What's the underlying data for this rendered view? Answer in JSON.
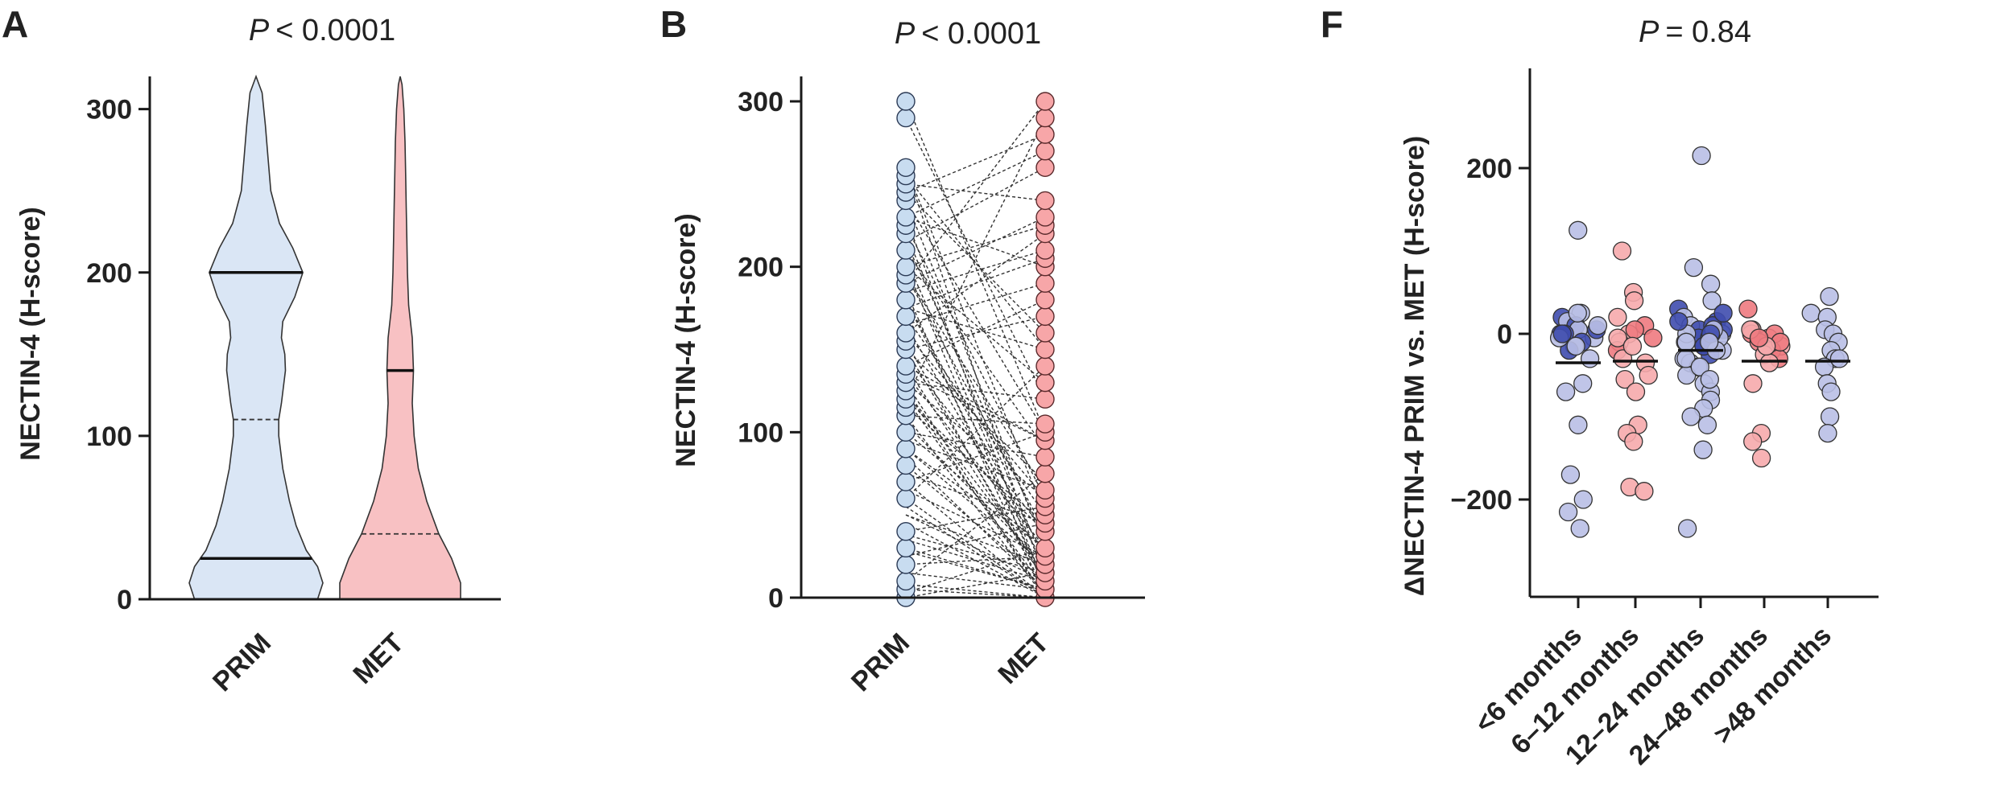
{
  "colors": {
    "prim_fill": "#dae6f5",
    "met_fill": "#f8c1c3",
    "met_fill_light": "#fbd3d4",
    "dark_blue": "#3f4cae",
    "light_blue": "#b9bfe6",
    "dark_red": "#ee7a80",
    "light_red": "#f6aaac",
    "prim_point": "#c8dcf0",
    "met_point": "#f7a6a8"
  },
  "chart_data": [
    {
      "id": "A",
      "type": "violin",
      "panel_label": "A",
      "p_label": "P",
      "p_value": "< 0.0001",
      "ylabel": "NECTIN-4 (H-score)",
      "ylim": [
        0,
        320
      ],
      "yticks": [
        "0",
        "100",
        "200",
        "300"
      ],
      "categories": [
        "PRIM",
        "MET"
      ],
      "series": [
        {
          "name": "PRIM",
          "color": "#dae6f5",
          "median": 110,
          "q1": 25,
          "q3": 200,
          "max": 320,
          "density": [
            [
              0,
              0.92
            ],
            [
              10,
              1.0
            ],
            [
              20,
              0.92
            ],
            [
              30,
              0.75
            ],
            [
              45,
              0.6
            ],
            [
              60,
              0.5
            ],
            [
              80,
              0.4
            ],
            [
              100,
              0.34
            ],
            [
              110,
              0.34
            ],
            [
              120,
              0.38
            ],
            [
              140,
              0.44
            ],
            [
              150,
              0.43
            ],
            [
              160,
              0.38
            ],
            [
              170,
              0.4
            ],
            [
              185,
              0.58
            ],
            [
              200,
              0.7
            ],
            [
              215,
              0.55
            ],
            [
              230,
              0.35
            ],
            [
              250,
              0.22
            ],
            [
              270,
              0.18
            ],
            [
              290,
              0.14
            ],
            [
              310,
              0.09
            ],
            [
              320,
              0.0
            ]
          ]
        },
        {
          "name": "MET",
          "color": "#f8c1c3",
          "median": 40,
          "q1": 0,
          "q3": 140,
          "max": 320,
          "density": [
            [
              0,
              1.0
            ],
            [
              10,
              1.0
            ],
            [
              25,
              0.85
            ],
            [
              40,
              0.64
            ],
            [
              60,
              0.44
            ],
            [
              80,
              0.3
            ],
            [
              100,
              0.23
            ],
            [
              120,
              0.2
            ],
            [
              140,
              0.22
            ],
            [
              160,
              0.2
            ],
            [
              180,
              0.14
            ],
            [
              200,
              0.12
            ],
            [
              220,
              0.11
            ],
            [
              240,
              0.1
            ],
            [
              260,
              0.09
            ],
            [
              280,
              0.08
            ],
            [
              300,
              0.06
            ],
            [
              315,
              0.03
            ],
            [
              320,
              0.0
            ]
          ]
        }
      ]
    },
    {
      "id": "B",
      "type": "paired-dot",
      "panel_label": "B",
      "p_label": "P",
      "p_value": "< 0.0001",
      "ylabel": "NECTIN-4 (H-score)",
      "ylim": [
        0,
        300
      ],
      "yticks": [
        "0",
        "100",
        "200",
        "300"
      ],
      "categories": [
        "PRIM",
        "MET"
      ],
      "prim_values": [
        0,
        5,
        10,
        20,
        30,
        40,
        60,
        70,
        80,
        90,
        100,
        110,
        115,
        120,
        125,
        130,
        135,
        140,
        150,
        155,
        160,
        170,
        180,
        190,
        195,
        200,
        210,
        220,
        225,
        230,
        240,
        245,
        250,
        255,
        260,
        290,
        300
      ],
      "met_values": [
        0,
        5,
        10,
        15,
        20,
        25,
        30,
        40,
        45,
        50,
        55,
        60,
        65,
        75,
        85,
        95,
        100,
        105,
        120,
        130,
        140,
        150,
        160,
        170,
        180,
        190,
        200,
        205,
        210,
        220,
        225,
        230,
        240,
        260,
        270,
        280,
        290,
        300
      ],
      "pairs": [
        [
          300,
          100
        ],
        [
          290,
          120
        ],
        [
          260,
          10
        ],
        [
          255,
          150
        ],
        [
          250,
          240
        ],
        [
          245,
          160
        ],
        [
          240,
          30
        ],
        [
          230,
          200
        ],
        [
          225,
          60
        ],
        [
          220,
          20
        ],
        [
          210,
          90
        ],
        [
          200,
          130
        ],
        [
          195,
          40
        ],
        [
          190,
          300
        ],
        [
          180,
          10
        ],
        [
          170,
          50
        ],
        [
          160,
          220
        ],
        [
          155,
          5
        ],
        [
          150,
          70
        ],
        [
          140,
          180
        ],
        [
          135,
          30
        ],
        [
          130,
          0
        ],
        [
          125,
          15
        ],
        [
          120,
          290
        ],
        [
          115,
          45
        ],
        [
          110,
          105
        ],
        [
          100,
          85
        ],
        [
          90,
          20
        ],
        [
          80,
          10
        ],
        [
          70,
          0
        ],
        [
          60,
          140
        ],
        [
          40,
          55
        ],
        [
          30,
          5
        ],
        [
          20,
          25
        ],
        [
          10,
          75
        ],
        [
          5,
          0
        ],
        [
          0,
          15
        ],
        [
          245,
          280
        ],
        [
          230,
          270
        ],
        [
          215,
          260
        ],
        [
          200,
          225
        ],
        [
          190,
          230
        ],
        [
          185,
          210
        ],
        [
          175,
          205
        ],
        [
          165,
          190
        ],
        [
          150,
          170
        ],
        [
          140,
          95
        ],
        [
          130,
          60
        ],
        [
          120,
          40
        ],
        [
          100,
          30
        ],
        [
          95,
          65
        ],
        [
          70,
          100
        ],
        [
          60,
          0
        ],
        [
          50,
          20
        ],
        [
          35,
          10
        ],
        [
          25,
          45
        ],
        [
          15,
          5
        ],
        [
          8,
          0
        ],
        [
          3,
          30
        ],
        [
          200,
          5
        ],
        [
          180,
          25
        ],
        [
          160,
          60
        ],
        [
          140,
          10
        ],
        [
          130,
          120
        ],
        [
          120,
          5
        ],
        [
          110,
          0
        ],
        [
          90,
          30
        ],
        [
          75,
          45
        ],
        [
          50,
          10
        ],
        [
          45,
          0
        ],
        [
          260,
          50
        ],
        [
          240,
          100
        ],
        [
          230,
          5
        ],
        [
          215,
          35
        ],
        [
          205,
          15
        ],
        [
          195,
          65
        ],
        [
          185,
          0
        ],
        [
          175,
          150
        ],
        [
          165,
          20
        ],
        [
          150,
          10
        ],
        [
          145,
          40
        ],
        [
          135,
          95
        ],
        [
          125,
          0
        ],
        [
          105,
          20
        ],
        [
          85,
          5
        ],
        [
          65,
          25
        ],
        [
          55,
          0
        ],
        [
          38,
          15
        ],
        [
          28,
          5
        ]
      ]
    },
    {
      "id": "F",
      "type": "scatter-categorical",
      "panel_label": "F",
      "p_label": "P",
      "p_value": "= 0.84",
      "ylabel": "ΔNECTIN-4 PRIM vs. MET (H-score)",
      "ylim": [
        -300,
        320
      ],
      "yticks": [
        "−200",
        "0",
        "200"
      ],
      "ytick_values": [
        -200,
        0,
        200
      ],
      "categories": [
        "<6 months",
        "6–12 months",
        "12–24 months",
        "24–48 months",
        ">48 months"
      ],
      "medians": [
        -35,
        -33,
        -20,
        -33,
        -33
      ],
      "series": [
        {
          "name": "<6 months",
          "values": [
            125,
            25,
            20,
            15,
            10,
            5,
            0,
            -5,
            -10,
            -15,
            -20,
            -30,
            -60,
            -70,
            -110,
            -170,
            -200,
            -215,
            -235,
            25,
            0,
            -5,
            5,
            10,
            0,
            -15
          ]
        },
        {
          "name": "6–12 months",
          "values": [
            100,
            50,
            40,
            20,
            10,
            0,
            -5,
            -10,
            -20,
            -30,
            -35,
            -50,
            -55,
            -70,
            -110,
            -120,
            -130,
            -185,
            -190,
            -5,
            5,
            -15
          ]
        },
        {
          "name": "12–24 months",
          "values": [
            215,
            80,
            60,
            40,
            30,
            20,
            15,
            10,
            5,
            0,
            -5,
            -10,
            -15,
            -20,
            -25,
            -30,
            -35,
            -40,
            -50,
            -60,
            -70,
            -80,
            -90,
            -100,
            -110,
            -140,
            -235,
            0,
            5,
            -5,
            10,
            -10,
            25,
            0,
            -5,
            5,
            -15,
            -20,
            0,
            -10,
            15,
            -30,
            -40,
            -55
          ]
        },
        {
          "name": "24–48 months",
          "values": [
            30,
            5,
            0,
            -5,
            -10,
            -15,
            -20,
            -25,
            -30,
            -35,
            -60,
            -120,
            -130,
            -150,
            0,
            5,
            -10,
            -15,
            -5
          ]
        },
        {
          "name": ">48 months",
          "values": [
            45,
            25,
            20,
            5,
            0,
            -10,
            -20,
            -30,
            -40,
            -60,
            -70,
            -100,
            -120,
            -30
          ]
        }
      ]
    }
  ]
}
